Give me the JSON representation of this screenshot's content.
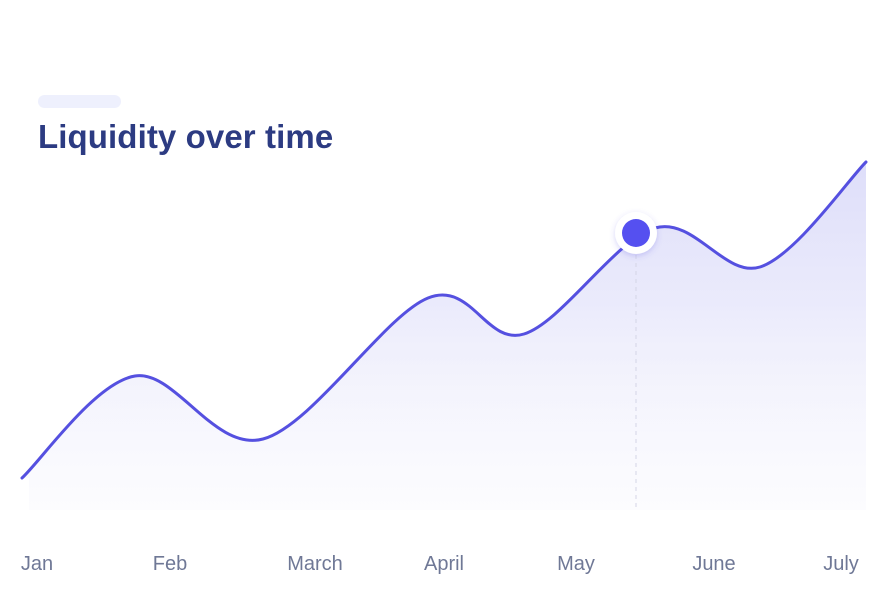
{
  "chart_data": {
    "type": "area",
    "title": "Liquidity over time",
    "categories": [
      "Jan",
      "Feb",
      "March",
      "April",
      "May",
      "June",
      "July"
    ],
    "highlight_index": 5,
    "colors": {
      "line": "#5550e0",
      "fill": "#e3e4fa",
      "marker": "#5550f0",
      "title": "#2c3b82",
      "ticks": "#6f7896",
      "pill": "#eef0fd"
    }
  }
}
